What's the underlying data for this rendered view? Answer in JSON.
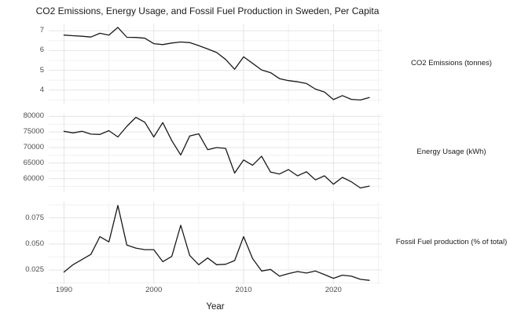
{
  "title": "CO2 Emissions, Energy Usage, and Fossil Fuel Production in Sweden, Per Capita",
  "chart_data": {
    "type": "line",
    "title": "CO2 Emissions, Energy Usage, and Fossil Fuel Production in Sweden, Per Capita",
    "x_label": "Year",
    "legend": "none",
    "grid": "on",
    "line_color": "#1a1a1a",
    "grid_major_color": "#e4e4e4",
    "grid_minor_color": "#f1f1f1",
    "background_color": "#ffffff",
    "x": [
      1990,
      1991,
      1992,
      1993,
      1994,
      1995,
      1996,
      1997,
      1998,
      1999,
      2000,
      2001,
      2002,
      2003,
      2004,
      2005,
      2006,
      2007,
      2008,
      2009,
      2010,
      2011,
      2012,
      2013,
      2014,
      2015,
      2016,
      2017,
      2018,
      2019,
      2020,
      2021,
      2022,
      2023,
      2024
    ],
    "x_ticks": [
      1990,
      2000,
      2010,
      2020
    ],
    "x_minor_ticks": [
      1995,
      2005,
      2015,
      2025
    ],
    "xlim": [
      1988.3,
      2025.4
    ],
    "panels": [
      {
        "strip_label": "CO2 Emissions (tonnes)",
        "y_ticks": [
          4,
          5,
          6,
          7
        ],
        "y_tick_labels": [
          "4",
          "5",
          "6",
          "7"
        ],
        "y_minor_ticks": [
          3.5,
          4.5,
          5.5,
          6.5
        ],
        "ylim": [
          3.316,
          7.364
        ],
        "values": [
          6.78,
          6.75,
          6.72,
          6.68,
          6.87,
          6.78,
          7.17,
          6.67,
          6.66,
          6.62,
          6.35,
          6.3,
          6.38,
          6.43,
          6.4,
          6.25,
          6.08,
          5.9,
          5.55,
          5.05,
          5.68,
          5.35,
          5.02,
          4.88,
          4.58,
          4.48,
          4.42,
          4.33,
          4.05,
          3.9,
          3.52,
          3.72,
          3.53,
          3.5,
          3.62
        ]
      },
      {
        "strip_label": "Energy Usage (kWh)",
        "y_ticks": [
          60000,
          65000,
          70000,
          75000,
          80000
        ],
        "y_tick_labels": [
          "60000",
          "65000",
          "70000",
          "75000",
          "80000"
        ],
        "y_minor_ticks": [
          57500,
          62500,
          67500,
          72500,
          77500
        ],
        "ylim": [
          55865,
          80835
        ],
        "values": [
          75200,
          74700,
          75200,
          74300,
          74200,
          75400,
          73400,
          76800,
          79700,
          78100,
          73400,
          78000,
          72200,
          67600,
          73700,
          74400,
          69300,
          70000,
          69700,
          61800,
          66000,
          64300,
          67200,
          62100,
          61500,
          62900,
          60900,
          62200,
          59600,
          60900,
          58200,
          60400,
          59000,
          57000,
          57600
        ]
      },
      {
        "strip_label": "Fossil Fuel production (% of total)",
        "y_ticks": [
          0.025,
          0.05,
          0.075
        ],
        "y_tick_labels": [
          "0.025",
          "0.050",
          "0.075"
        ],
        "y_minor_ticks": [
          0.0125,
          0.0375,
          0.0625,
          0.0875
        ],
        "ylim": [
          0.0114,
          0.0906
        ],
        "values": [
          0.023,
          0.03,
          0.035,
          0.04,
          0.057,
          0.052,
          0.087,
          0.049,
          0.046,
          0.0445,
          0.0445,
          0.033,
          0.038,
          0.068,
          0.039,
          0.03,
          0.0365,
          0.03,
          0.0305,
          0.034,
          0.057,
          0.036,
          0.024,
          0.0255,
          0.019,
          0.0215,
          0.0235,
          0.022,
          0.024,
          0.0205,
          0.017,
          0.02,
          0.019,
          0.016,
          0.015
        ]
      }
    ]
  }
}
